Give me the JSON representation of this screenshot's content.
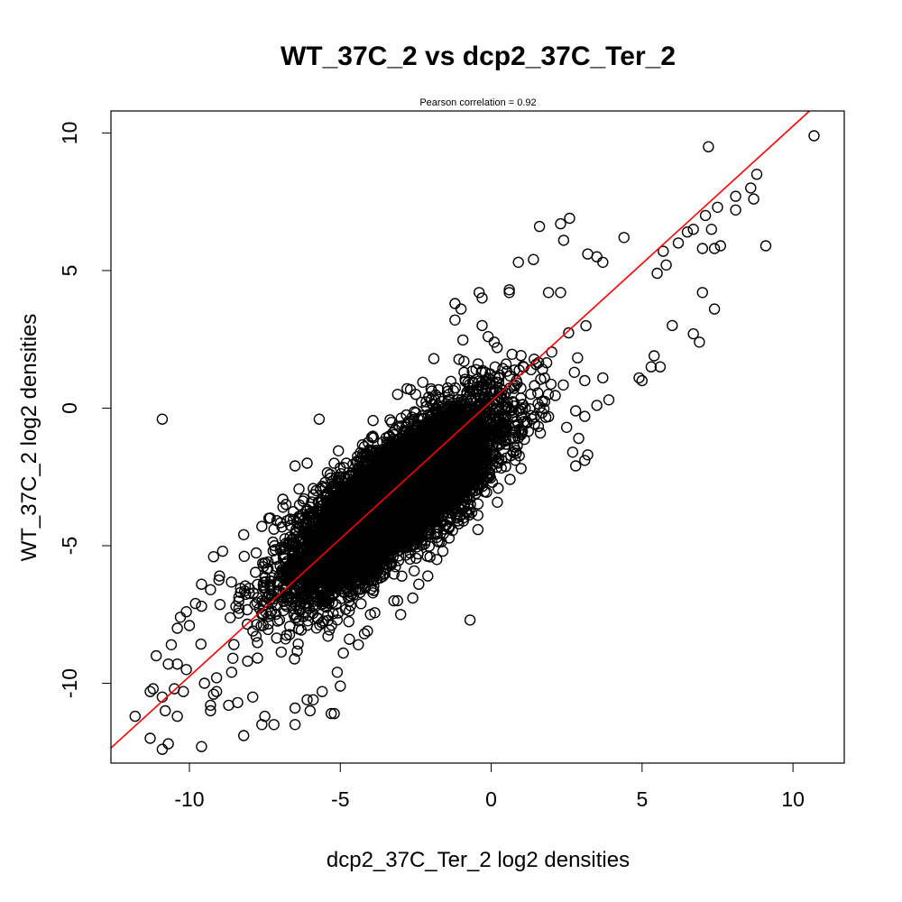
{
  "chart_data": {
    "type": "scatter",
    "title": "WT_37C_2 vs dcp2_37C_Ter_2",
    "subtitle": "Pearson correlation =  0.92",
    "xlabel": "dcp2_37C_Ter_2 log2 densities",
    "ylabel": "WT_37C_2 log2 densities",
    "xlim": [
      -12.6,
      11.7
    ],
    "ylim": [
      -12.9,
      10.8
    ],
    "x_ticks": [
      -10,
      -5,
      0,
      5,
      10
    ],
    "x_tick_labels": [
      "-10",
      "-5",
      "0",
      "5",
      "10"
    ],
    "y_ticks": [
      -10,
      -5,
      0,
      5,
      10
    ],
    "y_tick_labels": [
      "-10",
      "-5",
      "0",
      "5",
      "10"
    ],
    "grid": false,
    "legend": "none",
    "point_color": "#000000",
    "fit_line": {
      "color": "#ff0000",
      "intercept": 0.25,
      "slope": 1.0
    },
    "cloud": {
      "count": 9000,
      "center_x": -3.2,
      "center_y": -3.3,
      "slope": 1.0,
      "sd_along": 2.2,
      "sd_across": 0.75
    },
    "points": [
      [
        10.7,
        9.9
      ],
      [
        7.2,
        9.5
      ],
      [
        8.8,
        8.5
      ],
      [
        8.6,
        8.0
      ],
      [
        8.1,
        7.7
      ],
      [
        8.7,
        7.6
      ],
      [
        8.1,
        7.2
      ],
      [
        7.5,
        7.3
      ],
      [
        7.1,
        7.0
      ],
      [
        7.3,
        6.5
      ],
      [
        7.6,
        5.9
      ],
      [
        7.4,
        5.8
      ],
      [
        9.1,
        5.9
      ],
      [
        7.0,
        5.8
      ],
      [
        6.7,
        6.5
      ],
      [
        6.5,
        6.4
      ],
      [
        6.2,
        6.0
      ],
      [
        5.7,
        5.7
      ],
      [
        5.5,
        4.9
      ],
      [
        5.8,
        5.2
      ],
      [
        7.0,
        4.2
      ],
      [
        7.4,
        3.6
      ],
      [
        6.0,
        3.0
      ],
      [
        6.7,
        2.7
      ],
      [
        6.9,
        2.4
      ],
      [
        5.4,
        1.9
      ],
      [
        5.6,
        1.5
      ],
      [
        5.3,
        1.5
      ],
      [
        5.0,
        1.0
      ],
      [
        4.9,
        1.1
      ],
      [
        1.6,
        6.6
      ],
      [
        2.3,
        6.7
      ],
      [
        2.6,
        6.9
      ],
      [
        2.4,
        6.1
      ],
      [
        4.4,
        6.2
      ],
      [
        3.2,
        5.6
      ],
      [
        3.5,
        5.5
      ],
      [
        3.7,
        5.3
      ],
      [
        1.4,
        5.4
      ],
      [
        0.9,
        5.3
      ],
      [
        1.9,
        4.2
      ],
      [
        2.3,
        4.2
      ],
      [
        0.6,
        4.3
      ],
      [
        0.6,
        4.2
      ],
      [
        -0.4,
        4.2
      ],
      [
        -0.3,
        4.0
      ],
      [
        -1.2,
        3.8
      ],
      [
        -1.0,
        3.6
      ],
      [
        -1.2,
        3.2
      ],
      [
        -0.3,
        3.0
      ],
      [
        -0.1,
        2.6
      ],
      [
        0.1,
        2.4
      ],
      [
        0.2,
        2.2
      ],
      [
        -1.9,
        1.8
      ],
      [
        -0.9,
        1.7
      ],
      [
        -0.9,
        1.3
      ],
      [
        -0.5,
        1.4
      ],
      [
        -0.2,
        1.3
      ],
      [
        -0.2,
        1.0
      ],
      [
        -3.1,
        0.5
      ],
      [
        -2.5,
        0.5
      ],
      [
        -1.4,
        0.5
      ],
      [
        -5.7,
        -0.4
      ],
      [
        -10.9,
        -0.4
      ],
      [
        3.1,
        1.0
      ],
      [
        3.7,
        1.1
      ],
      [
        3.9,
        0.3
      ],
      [
        2.8,
        -0.1
      ],
      [
        3.1,
        -0.3
      ],
      [
        2.5,
        -0.7
      ],
      [
        3.5,
        0.1
      ],
      [
        2.9,
        -1.1
      ],
      [
        3.2,
        -1.7
      ],
      [
        3.1,
        -1.9
      ],
      [
        2.8,
        -2.1
      ],
      [
        2.7,
        -1.6
      ],
      [
        -1.3,
        -3.4
      ],
      [
        -0.8,
        -3.3
      ],
      [
        -1.4,
        -4.3
      ],
      [
        -1.8,
        -4.7
      ],
      [
        -1.1,
        -4.1
      ],
      [
        -1.6,
        -5.2
      ],
      [
        -0.7,
        -7.7
      ],
      [
        -1.8,
        -5.5
      ],
      [
        -2.1,
        -6.1
      ],
      [
        -2.6,
        -6.9
      ],
      [
        -2.4,
        -6.4
      ],
      [
        -3.1,
        -7.0
      ],
      [
        -3.0,
        -7.5
      ],
      [
        -4.0,
        -7.5
      ],
      [
        -4.1,
        -8.1
      ],
      [
        -4.4,
        -8.6
      ],
      [
        -4.2,
        -8.2
      ],
      [
        -4.9,
        -8.9
      ],
      [
        -4.7,
        -8.4
      ],
      [
        -5.1,
        -9.6
      ],
      [
        -5.0,
        -10.1
      ],
      [
        -5.6,
        -10.3
      ],
      [
        -5.9,
        -10.6
      ],
      [
        -6.1,
        -10.6
      ],
      [
        -5.3,
        -11.1
      ],
      [
        -5.2,
        -11.1
      ],
      [
        -6.0,
        -11.0
      ],
      [
        -6.5,
        -10.9
      ],
      [
        -6.5,
        -11.5
      ],
      [
        -7.2,
        -11.5
      ],
      [
        -7.5,
        -11.2
      ],
      [
        -7.6,
        -11.5
      ],
      [
        -8.2,
        -11.9
      ],
      [
        -8.4,
        -10.7
      ],
      [
        -7.9,
        -10.5
      ],
      [
        -8.7,
        -10.8
      ],
      [
        -9.2,
        -10.4
      ],
      [
        -9.3,
        -11.0
      ],
      [
        -9.5,
        -10.0
      ],
      [
        -9.1,
        -10.3
      ],
      [
        -10.2,
        -10.3
      ],
      [
        -10.5,
        -10.2
      ],
      [
        -10.9,
        -10.5
      ],
      [
        -11.2,
        -10.2
      ],
      [
        -11.3,
        -10.3
      ],
      [
        -11.8,
        -11.2
      ],
      [
        -10.8,
        -11.0
      ],
      [
        -10.4,
        -11.2
      ],
      [
        -11.3,
        -12.0
      ],
      [
        -10.7,
        -12.2
      ],
      [
        -10.9,
        -12.4
      ],
      [
        -9.6,
        -12.3
      ],
      [
        -9.3,
        -10.8
      ],
      [
        -8.6,
        -9.6
      ],
      [
        -9.1,
        -9.8
      ],
      [
        -10.4,
        -9.3
      ],
      [
        -10.1,
        -9.5
      ],
      [
        -10.7,
        -9.3
      ],
      [
        -11.1,
        -9.0
      ],
      [
        -10.6,
        -8.6
      ],
      [
        -10.4,
        -8.0
      ],
      [
        -10.3,
        -7.6
      ],
      [
        -10.1,
        -7.4
      ],
      [
        -10.0,
        -7.9
      ],
      [
        -9.8,
        -7.1
      ],
      [
        -9.6,
        -7.2
      ],
      [
        -9.3,
        -6.6
      ],
      [
        -9.6,
        -6.4
      ],
      [
        -9.0,
        -6.1
      ],
      [
        -9.2,
        -5.4
      ],
      [
        -8.9,
        -5.2
      ],
      [
        -8.2,
        -4.6
      ],
      [
        -7.6,
        -4.3
      ],
      [
        -7.2,
        -4.4
      ],
      [
        -6.9,
        -3.6
      ],
      [
        -6.8,
        -3.5
      ],
      [
        -6.2,
        -3.3
      ],
      [
        -5.8,
        -3.0
      ],
      [
        -5.5,
        -2.7
      ],
      [
        -4.6,
        -2.6
      ],
      [
        -4.8,
        -2.0
      ],
      [
        -4.3,
        -1.8
      ],
      [
        -4.2,
        -1.4
      ],
      [
        -3.6,
        -1.5
      ],
      [
        -3.3,
        -1.2
      ],
      [
        -6.5,
        -2.1
      ],
      [
        -6.1,
        -2.0
      ],
      [
        -4.4,
        -2.2
      ]
    ]
  }
}
